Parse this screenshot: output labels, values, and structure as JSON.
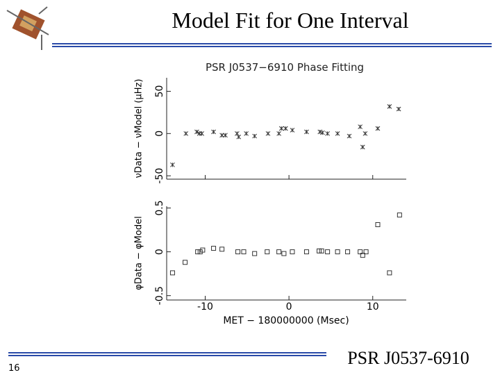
{
  "slide": {
    "title": "Model Fit for One Interval",
    "page_number": "16",
    "footer": "PSR J0537-6910"
  },
  "chart_data": [
    {
      "type": "scatter",
      "title": "PSR J0537−6910 Phase Fitting",
      "y_label": "νData − νModel (μHz)",
      "marker": "star",
      "color": "#333333",
      "x": [
        -13.9,
        -12.3,
        -11.0,
        -10.7,
        -10.4,
        -9.0,
        -8.0,
        -7.6,
        -6.2,
        -6.0,
        -5.1,
        -4.1,
        -2.5,
        -1.2,
        -0.9,
        -0.4,
        0.4,
        2.1,
        3.7,
        4.0,
        4.6,
        5.8,
        7.2,
        8.5,
        8.8,
        9.1,
        10.6,
        12.0,
        13.1
      ],
      "values": [
        -37,
        0,
        2,
        0,
        0,
        2,
        -2,
        -2,
        0,
        -4,
        0,
        -3,
        0,
        0,
        6,
        6,
        4,
        2,
        2,
        1,
        0,
        0,
        -3,
        8,
        -16,
        0,
        6,
        32,
        29
      ],
      "xlim": [
        -14.6,
        14
      ],
      "ylim": [
        -54,
        66
      ],
      "yticks": [
        -50,
        0,
        50
      ]
    },
    {
      "type": "scatter",
      "y_label": "φData − φModel",
      "x_label": "MET − 180000000 (Msec)",
      "marker": "square",
      "color": "#333333",
      "x": [
        -13.9,
        -12.4,
        -10.9,
        -10.6,
        -10.3,
        -9.0,
        -8.0,
        -6.1,
        -5.4,
        -4.1,
        -2.6,
        -1.2,
        -0.6,
        0.4,
        2.1,
        3.6,
        3.9,
        4.6,
        5.8,
        7.0,
        8.5,
        8.8,
        9.2,
        10.6,
        12.0,
        13.2
      ],
      "values": [
        -0.24,
        -0.12,
        0,
        0,
        0.02,
        0.04,
        0.03,
        0,
        0,
        -0.02,
        0,
        0,
        -0.02,
        0,
        0,
        0.01,
        0.01,
        0,
        0,
        0,
        0,
        -0.04,
        0,
        0.31,
        -0.24,
        0.42
      ],
      "xlim": [
        -14.6,
        14
      ],
      "ylim": [
        -0.55,
        0.52
      ],
      "xticks": [
        -10,
        0,
        10
      ],
      "yticks": [
        -0.5,
        0,
        0.5
      ]
    }
  ]
}
